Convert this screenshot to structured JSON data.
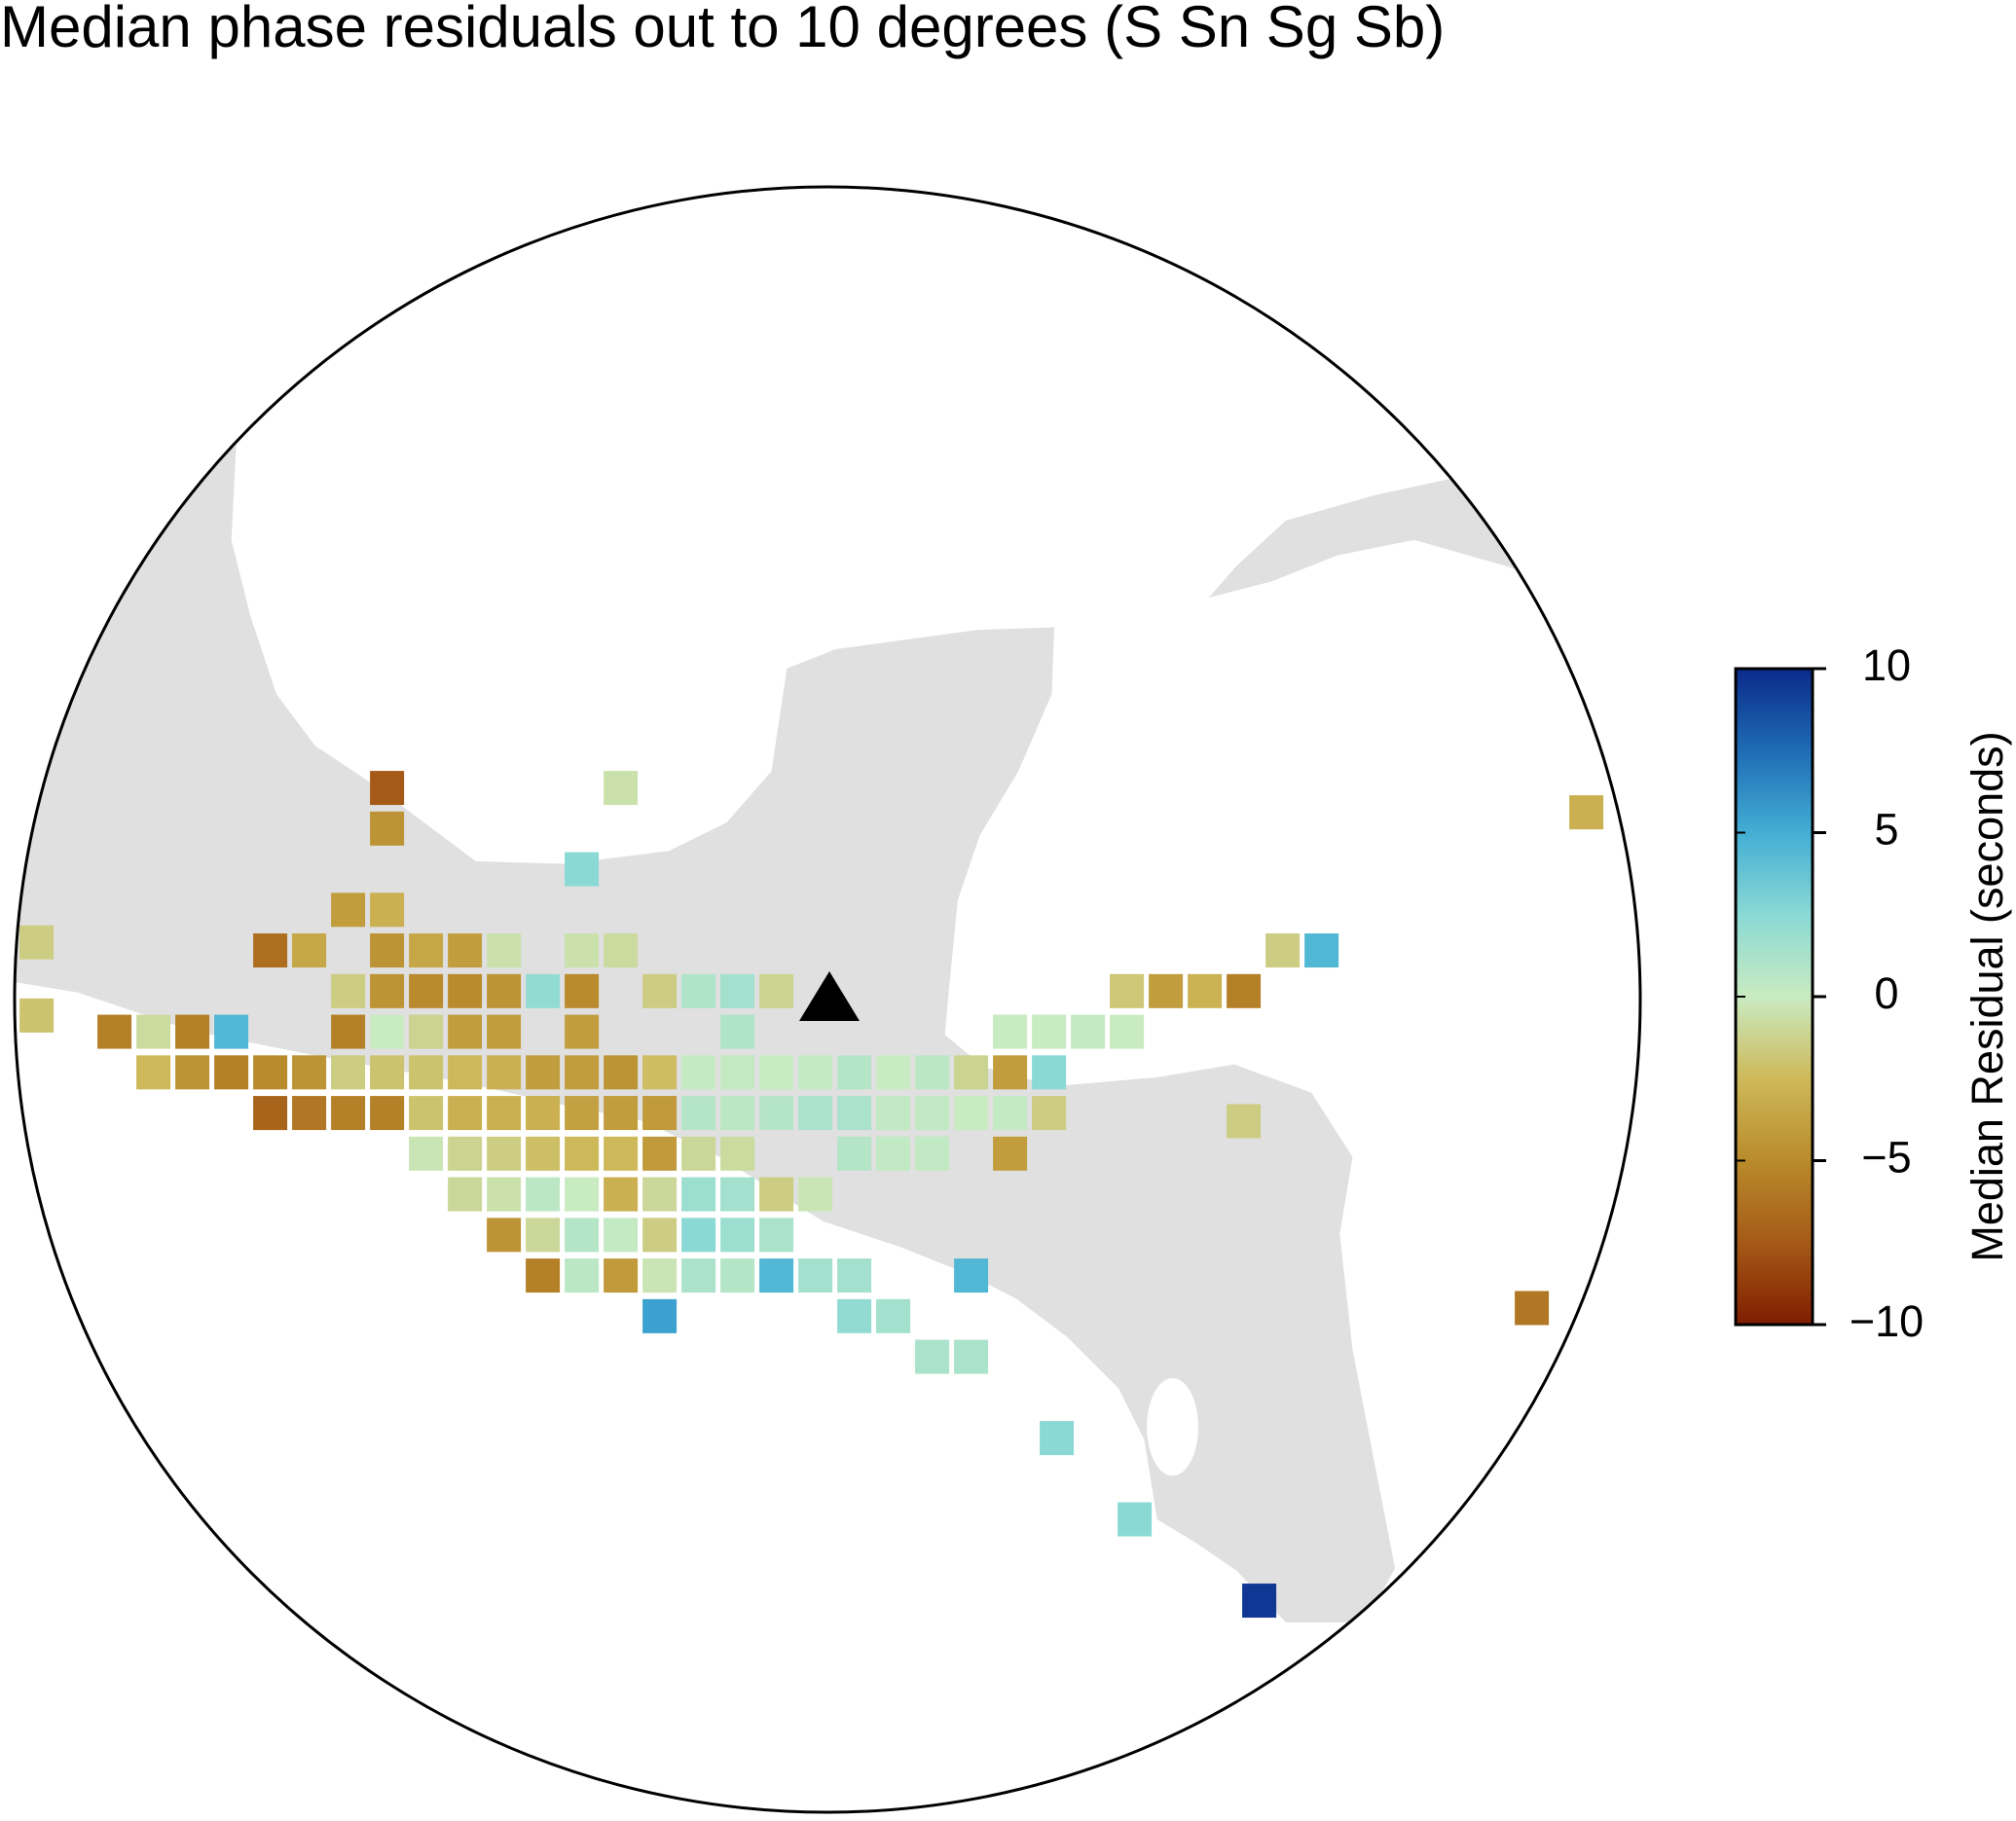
{
  "chart_data": {
    "type": "map",
    "title": "Median phase residuals out to 10 degrees (S Sn Sg Sb)",
    "colorbar_label": "Median Residual (seconds)",
    "station": {
      "lon": -89.82,
      "lat": 17.42
    },
    "clim": [
      -10,
      10
    ],
    "cticks": [
      {
        "value": -10,
        "label": "−10"
      },
      {
        "value": -5,
        "label": "−5"
      },
      0,
      5,
      10
    ],
    "colormap": [
      "#7f1d00",
      "#a55a17",
      "#b98b2c",
      "#ceb95a",
      "#c9ebc1",
      "#8ad9d5",
      "#43aed4",
      "#1f6cb5",
      "#0b2a8a"
    ],
    "x": [
      -95.5,
      -92.5,
      -80.1,
      -95.5,
      -93.0,
      -96.0,
      -95.5,
      -100.0,
      -97.0,
      -96.5,
      -95.5,
      -95.0,
      -94.5,
      -94.0,
      -93.0,
      -92.5,
      -84.0,
      -83.5,
      -96.0,
      -95.5,
      -95.0,
      -94.5,
      -94.0,
      -93.5,
      -93.0,
      -92.0,
      -91.5,
      -91.0,
      -90.5,
      -86.0,
      -85.5,
      -85.0,
      -84.5,
      -100.0,
      -99.0,
      -98.5,
      -98.0,
      -97.5,
      -96.0,
      -95.5,
      -95.0,
      -94.5,
      -94.0,
      -93.0,
      -91.0,
      -87.5,
      -87.0,
      -86.5,
      -86.0,
      -98.5,
      -98.0,
      -97.5,
      -97.0,
      -96.5,
      -96.0,
      -95.5,
      -95.0,
      -94.5,
      -94.0,
      -93.5,
      -93.0,
      -92.5,
      -92.0,
      -91.5,
      -91.0,
      -90.5,
      -90.0,
      -89.5,
      -89.0,
      -88.5,
      -88.0,
      -87.5,
      -87.0,
      -97.0,
      -96.5,
      -96.0,
      -95.5,
      -95.0,
      -94.5,
      -94.0,
      -93.5,
      -93.0,
      -92.5,
      -92.0,
      -91.5,
      -91.0,
      -90.5,
      -90.0,
      -89.5,
      -89.0,
      -88.5,
      -88.0,
      -87.5,
      -87.0,
      -84.5,
      -95.0,
      -94.5,
      -94.0,
      -93.5,
      -93.0,
      -92.5,
      -92.0,
      -91.5,
      -91.0,
      -89.5,
      -89.0,
      -88.5,
      -87.5,
      -94.5,
      -94.0,
      -93.5,
      -93.0,
      -92.5,
      -92.0,
      -91.5,
      -91.0,
      -90.5,
      -90.0,
      -94.0,
      -93.5,
      -93.0,
      -92.5,
      -92.0,
      -91.5,
      -91.0,
      -90.5,
      -93.5,
      -93.0,
      -92.5,
      -92.0,
      -91.5,
      -91.0,
      -90.5,
      -90.0,
      -89.5,
      -88.0,
      -80.8,
      -92.0,
      -89.5,
      -89.0,
      -88.5,
      -88.0,
      -86.9,
      -85.9,
      -84.3
    ],
    "y": [
      20.0,
      20.0,
      19.7,
      19.5,
      19.0,
      18.5,
      18.5,
      18.1,
      18.0,
      18.0,
      18.0,
      18.0,
      18.0,
      18.0,
      18.0,
      18.0,
      18.0,
      18.0,
      17.5,
      17.5,
      17.5,
      17.5,
      17.5,
      17.5,
      17.5,
      17.5,
      17.5,
      17.5,
      17.5,
      17.5,
      17.5,
      17.5,
      17.5,
      17.2,
      17.0,
      17.0,
      17.0,
      17.0,
      17.0,
      17.0,
      17.0,
      17.0,
      17.0,
      17.0,
      17.0,
      17.0,
      17.0,
      17.0,
      17.0,
      16.5,
      16.5,
      16.5,
      16.5,
      16.5,
      16.5,
      16.5,
      16.5,
      16.5,
      16.5,
      16.5,
      16.5,
      16.5,
      16.5,
      16.5,
      16.5,
      16.5,
      16.5,
      16.5,
      16.5,
      16.5,
      16.5,
      16.5,
      16.5,
      16.0,
      16.0,
      16.0,
      16.0,
      16.0,
      16.0,
      16.0,
      16.0,
      16.0,
      16.0,
      16.0,
      16.0,
      16.0,
      16.0,
      16.0,
      16.0,
      16.0,
      16.0,
      16.0,
      16.0,
      16.0,
      15.9,
      15.5,
      15.5,
      15.5,
      15.5,
      15.5,
      15.5,
      15.5,
      15.5,
      15.5,
      15.5,
      15.5,
      15.5,
      15.5,
      15.0,
      15.0,
      15.0,
      15.0,
      15.0,
      15.0,
      15.0,
      15.0,
      15.0,
      15.0,
      14.5,
      14.5,
      14.5,
      14.5,
      14.5,
      14.5,
      14.5,
      14.5,
      14.0,
      14.0,
      14.0,
      14.0,
      14.0,
      14.0,
      14.0,
      14.0,
      14.0,
      14.0,
      13.6,
      13.5,
      13.5,
      13.5,
      13.0,
      13.0,
      12.0,
      11.0,
      10.0
    ],
    "values": [
      -7.5,
      -0.5,
      -3,
      -4.5,
      2.5,
      -4,
      -3,
      -1.5,
      -6.5,
      -3.5,
      -4.5,
      -3.5,
      -4,
      -0.5,
      -0.5,
      -0.8,
      -1.5,
      4.5,
      -1.5,
      -4.5,
      -5,
      -5,
      -4.5,
      2.2,
      -5,
      -1.5,
      1,
      1.5,
      -1.2,
      -1.8,
      -4,
      -2.8,
      -5.5,
      -2,
      -5.5,
      -0.8,
      -5.5,
      4.5,
      -5.5,
      0,
      -1.2,
      -4,
      -4,
      -4,
      1,
      0,
      0,
      0.2,
      0,
      -2.5,
      -4.5,
      -5.5,
      -5,
      -4.5,
      -1.5,
      -2,
      -2,
      -2.5,
      -3,
      -4,
      -4,
      -4.5,
      -2.3,
      0.2,
      0.2,
      0,
      0.2,
      0.8,
      0,
      0.5,
      -1.2,
      -4,
      2.5,
      -7,
      -6,
      -5.5,
      -5.5,
      -2,
      -3,
      -3,
      -3,
      -3.8,
      -4,
      -4.2,
      0.8,
      0.5,
      0.8,
      1.2,
      1.2,
      0.3,
      0.3,
      0,
      0.2,
      -1.5,
      -1.5,
      -0.3,
      -1.2,
      -1.5,
      -2.2,
      -2.5,
      -2.5,
      -4.2,
      -1,
      -0.8,
      0.8,
      0.3,
      0.3,
      -4,
      -1,
      -0.5,
      0.5,
      0,
      -3,
      -1,
      1.8,
      1.5,
      -1.5,
      -0.3,
      -4.5,
      -1,
      0.8,
      0.2,
      -1.5,
      2.5,
      1.8,
      1.2,
      -5.5,
      0.5,
      -4.2,
      -0.3,
      1.2,
      0.8,
      4.5,
      1.5,
      1.5,
      4.5,
      -6,
      5.5,
      2.2,
      1.5,
      1.2,
      1.2,
      2.5,
      2.5,
      9.5
    ]
  }
}
